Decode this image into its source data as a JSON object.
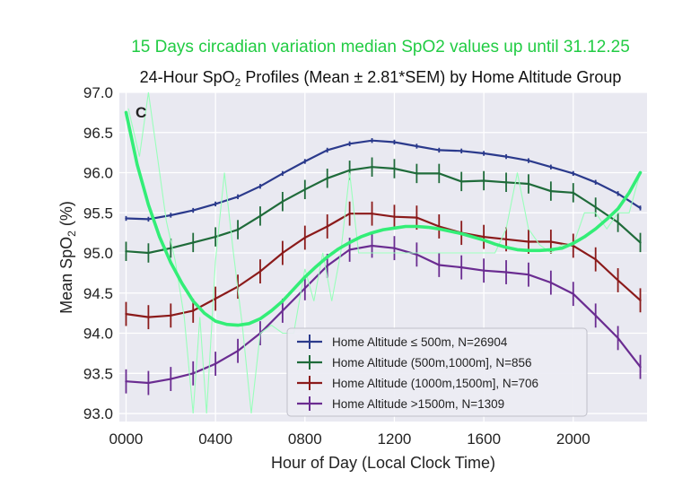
{
  "chart_data": {
    "type": "line",
    "overlay_title": "15 Days circadian variation median SpO2 values up until  31.12.25",
    "title_prefix": "24-Hour SpO",
    "title_sub": "2",
    "title_suffix": " Profiles (Mean ± 2.81*SEM) by Home Altitude Group",
    "panel_label": "C",
    "xlabel": "Hour of Day (Local Clock Time)",
    "ylabel_prefix": "Mean SpO",
    "ylabel_sub": "2",
    "ylabel_suffix": " (%)",
    "xlim": [
      -0.3,
      23.3
    ],
    "ylim": [
      92.9,
      97.0
    ],
    "x_ticks": [
      0,
      4,
      8,
      12,
      16,
      20
    ],
    "x_tick_labels": [
      "0000",
      "0400",
      "0800",
      "1200",
      "1600",
      "2000"
    ],
    "y_ticks": [
      93.0,
      93.5,
      94.0,
      94.5,
      95.0,
      95.5,
      96.0,
      96.5,
      97.0
    ],
    "y_tick_labels": [
      "93.0",
      "93.5",
      "94.0",
      "94.5",
      "95.0",
      "95.5",
      "96.0",
      "96.5",
      "97.0"
    ],
    "x": [
      0,
      1,
      2,
      3,
      4,
      5,
      6,
      7,
      8,
      9,
      10,
      11,
      12,
      13,
      14,
      15,
      16,
      17,
      18,
      19,
      20,
      21,
      22,
      23
    ],
    "series": [
      {
        "name": "Home Altitude  ≤ 500m, N=26904",
        "color": "#2b3a8c",
        "err": 0.03,
        "values": [
          95.43,
          95.42,
          95.47,
          95.53,
          95.61,
          95.7,
          95.83,
          95.99,
          96.14,
          96.28,
          96.36,
          96.4,
          96.38,
          96.33,
          96.28,
          96.27,
          96.24,
          96.2,
          96.15,
          96.07,
          95.99,
          95.88,
          95.74,
          95.56
        ]
      },
      {
        "name": "Home Altitude (500m,1000m], N=856",
        "color": "#1f6b3a",
        "err": 0.12,
        "values": [
          95.02,
          95.0,
          95.06,
          95.13,
          95.2,
          95.29,
          95.46,
          95.64,
          95.79,
          95.93,
          96.03,
          96.07,
          96.05,
          95.99,
          95.99,
          95.89,
          95.9,
          95.88,
          95.86,
          95.77,
          95.75,
          95.57,
          95.38,
          95.13
        ]
      },
      {
        "name": "Home Altitude (1000m,1500m], N=706",
        "color": "#8b1a1a",
        "err": 0.15,
        "values": [
          94.24,
          94.2,
          94.22,
          94.28,
          94.43,
          94.58,
          94.77,
          95.0,
          95.19,
          95.33,
          95.49,
          95.49,
          95.45,
          95.44,
          95.33,
          95.25,
          95.2,
          95.17,
          95.14,
          95.14,
          95.09,
          94.92,
          94.66,
          94.41
        ]
      },
      {
        "name": "Home Altitude >1500m, N=1309",
        "color": "#6a2c91",
        "err": 0.15,
        "values": [
          93.4,
          93.38,
          93.43,
          93.5,
          93.62,
          93.78,
          94.0,
          94.28,
          94.56,
          94.84,
          95.04,
          95.09,
          95.06,
          94.98,
          94.85,
          94.82,
          94.78,
          94.76,
          94.73,
          94.63,
          94.49,
          94.22,
          93.94,
          93.58
        ]
      }
    ],
    "overlay_smooth": {
      "color": "#33ee77",
      "x": [
        0,
        0.5,
        1,
        1.5,
        2,
        2.5,
        3,
        3.5,
        4,
        4.5,
        5,
        5.5,
        6,
        6.5,
        7,
        7.5,
        8,
        8.5,
        9,
        9.5,
        10,
        10.5,
        11,
        11.5,
        12,
        12.5,
        13,
        13.5,
        14,
        14.5,
        15,
        15.5,
        16,
        16.5,
        17,
        17.5,
        18,
        18.5,
        19,
        19.5,
        20,
        20.5,
        21,
        21.5,
        22,
        22.5,
        23
      ],
      "values": [
        96.75,
        96.1,
        95.6,
        95.2,
        94.88,
        94.62,
        94.4,
        94.25,
        94.15,
        94.11,
        94.1,
        94.12,
        94.18,
        94.28,
        94.4,
        94.55,
        94.7,
        94.83,
        94.95,
        95.05,
        95.13,
        95.2,
        95.25,
        95.29,
        95.31,
        95.33,
        95.33,
        95.32,
        95.3,
        95.27,
        95.24,
        95.2,
        95.16,
        95.11,
        95.07,
        95.04,
        95.03,
        95.03,
        95.04,
        95.06,
        95.12,
        95.2,
        95.3,
        95.42,
        95.55,
        95.75,
        96.0
      ]
    },
    "overlay_raw": {
      "color": "#99ffbb",
      "x": [
        0.1,
        0.6,
        1.0,
        1.4,
        1.8,
        2.2,
        2.6,
        3.0,
        3.3,
        3.6,
        4.0,
        4.4,
        4.8,
        5.2,
        5.6,
        6.0,
        6.5,
        7.0,
        7.5,
        8.0,
        8.4,
        8.8,
        9.2,
        9.6,
        10.0,
        10.4,
        10.8,
        11.2,
        11.6,
        12.0,
        12.5,
        13.0,
        13.5,
        14.0,
        14.5,
        15.0,
        15.5,
        16.0,
        16.5,
        17.0,
        17.5,
        18.0,
        18.5,
        19.0,
        19.5,
        20.0,
        20.5,
        21.0,
        21.5,
        22.0,
        22.5,
        23.0
      ],
      "values": [
        96.8,
        96.2,
        97.0,
        96.2,
        95.4,
        94.9,
        94.2,
        93.0,
        94.2,
        93.0,
        94.9,
        96.0,
        95.0,
        94.1,
        93.0,
        94.0,
        94.1,
        94.0,
        94.0,
        94.8,
        94.4,
        95.0,
        94.4,
        95.0,
        96.0,
        95.0,
        95.0,
        95.0,
        95.0,
        95.0,
        95.0,
        95.0,
        95.0,
        95.0,
        95.0,
        95.0,
        95.0,
        95.0,
        95.0,
        95.3,
        96.0,
        95.3,
        95.1,
        95.0,
        95.1,
        95.1,
        95.5,
        95.5,
        95.3,
        95.5,
        95.5,
        96.0
      ]
    }
  }
}
